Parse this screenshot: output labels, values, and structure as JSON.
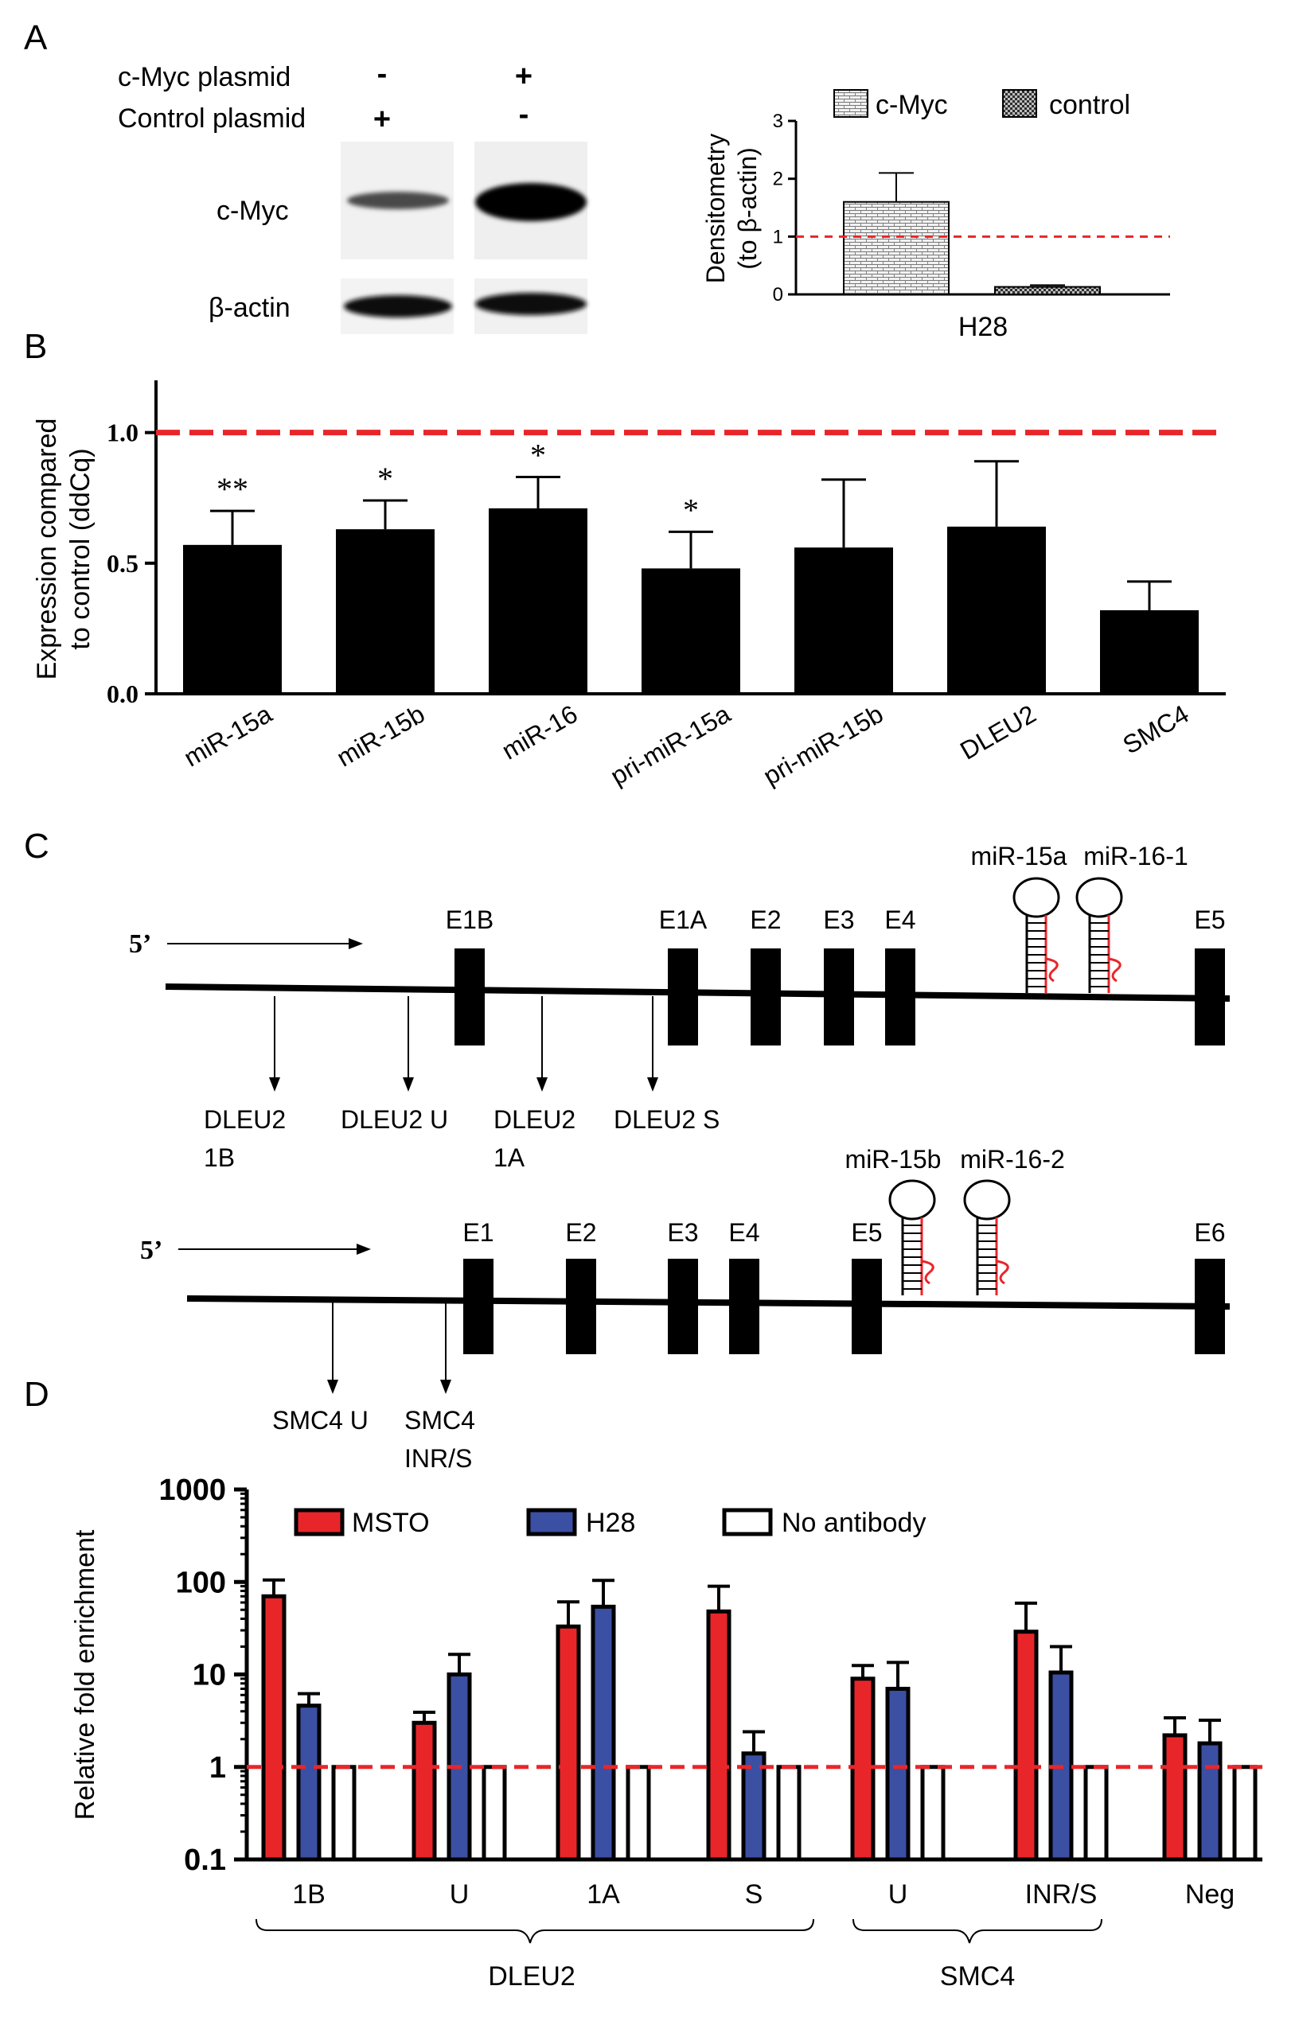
{
  "panels": {
    "A": "A",
    "B": "B",
    "C": "C",
    "D": "D"
  },
  "panel_a": {
    "blot": {
      "row1_label": "c-Myc plasmid",
      "row2_label": "Control plasmid",
      "lane1_row1": "-",
      "lane2_row1": "+",
      "lane1_row2": "+",
      "lane2_row2": "-",
      "band1_label": "c-Myc",
      "band2_label": "β-actin"
    },
    "legend_cmyc": "c-Myc",
    "legend_control": "control",
    "ylabel_line1": "Densitometry",
    "ylabel_line2": "(to β-actin)",
    "category": "H28",
    "colors": {
      "reference_line": "#e8262a"
    }
  },
  "panel_c": {
    "dleu2": {
      "five_prime": "5’",
      "exons": [
        "E1B",
        "E1A",
        "E2",
        "E3",
        "E4",
        "E5"
      ],
      "mirs": [
        "miR-15a",
        "miR-16-1"
      ],
      "sites": [
        {
          "line1": "DLEU2",
          "line2": "1B"
        },
        {
          "line1": "DLEU2 U",
          "line2": ""
        },
        {
          "line1": "DLEU2",
          "line2": "1A"
        },
        {
          "line1": "DLEU2 S",
          "line2": ""
        }
      ]
    },
    "smc4": {
      "five_prime": "5’",
      "exons": [
        "E1",
        "E2",
        "E3",
        "E4",
        "E5",
        "E6"
      ],
      "mirs": [
        "miR-15b",
        "miR-16-2"
      ],
      "sites": [
        {
          "line1": "SMC4 U",
          "line2": ""
        },
        {
          "line1": "SMC4",
          "line2": "INR/S"
        }
      ]
    }
  },
  "panel_d_groups": {
    "dleu2": "DLEU2",
    "smc4": "SMC4"
  },
  "chart_data": [
    {
      "panel": "A",
      "type": "bar",
      "categories": [
        "H28"
      ],
      "series": [
        {
          "name": "c-Myc",
          "values": [
            1.6
          ],
          "error": [
            0.5
          ]
        },
        {
          "name": "control",
          "values": [
            0.13
          ],
          "error": [
            0.03
          ]
        }
      ],
      "ylabel": "Densitometry (to β-actin)",
      "ylim": [
        0,
        3
      ],
      "yticks": [
        "0",
        "1",
        "2",
        "3"
      ],
      "reference_line": 1,
      "legend": "top"
    },
    {
      "panel": "B",
      "type": "bar",
      "categories": [
        "miR-15a",
        "miR-15b",
        "miR-16",
        "pri-miR-15a",
        "pri-miR-15b",
        "DLEU2",
        "SMC4"
      ],
      "values": [
        0.57,
        0.63,
        0.71,
        0.48,
        0.56,
        0.64,
        0.32
      ],
      "errors": [
        0.13,
        0.11,
        0.12,
        0.14,
        0.26,
        0.25,
        0.11
      ],
      "significance": [
        "**",
        "*",
        "*",
        "*",
        "",
        "",
        ""
      ],
      "ylabel": "Expression compared to control (ddCq)",
      "ylim": [
        0,
        1.2
      ],
      "yticks": [
        "0.0",
        "0.5",
        "1.0"
      ],
      "reference_line": 1.0
    },
    {
      "panel": "D",
      "type": "bar",
      "scale": "log",
      "categories": [
        "1B",
        "U",
        "1A",
        "S",
        "U",
        "INR/S",
        "Neg"
      ],
      "series": [
        {
          "name": "MSTO",
          "color": "#e8262a",
          "values": [
            70,
            3.0,
            33,
            48,
            9.0,
            29,
            2.2
          ],
          "error": [
            35,
            0.9,
            28,
            42,
            3.5,
            30,
            1.2
          ]
        },
        {
          "name": "H28",
          "color": "#3b4fa3",
          "values": [
            4.6,
            10,
            54,
            1.4,
            7.0,
            10.5,
            1.8
          ],
          "error": [
            1.6,
            6.5,
            50,
            1.0,
            6.5,
            9.5,
            1.4
          ]
        },
        {
          "name": "No antibody",
          "color": "#ffffff",
          "values": [
            1,
            1,
            1,
            1,
            1,
            1,
            1
          ],
          "error": [
            0,
            0,
            0,
            0,
            0,
            0,
            0
          ]
        }
      ],
      "ylabel": "Relative fold enrichment",
      "ylim": [
        0.1,
        1000
      ],
      "yticks": [
        "0.1",
        "1",
        "10",
        "100",
        "1000"
      ],
      "reference_line": 1,
      "legend": "top"
    }
  ]
}
